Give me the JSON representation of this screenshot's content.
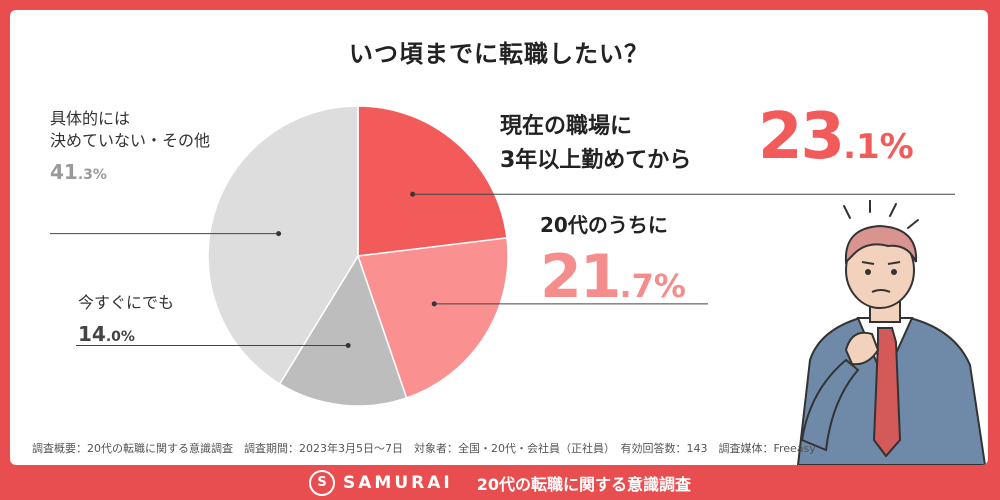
{
  "title": "いつ頃までに転職したい？",
  "chart_data": {
    "type": "pie",
    "categories": [
      "現在の職場に3年以上勤めてから",
      "20代のうちに",
      "今すぐにでも",
      "具体的には決めていない・その他"
    ],
    "values": [
      23.1,
      21.7,
      14.0,
      41.3
    ],
    "colors": [
      "#f35b5b",
      "#fa908f",
      "#bdbdbd",
      "#dddddd"
    ]
  },
  "labels": {
    "s1_line1": "現在の職場に",
    "s1_line2": "3年以上勤めてから",
    "s1_int": "23",
    "s1_dec": ".1%",
    "s2_line1": "20代のうちに",
    "s2_int": "21",
    "s2_dec": ".7%",
    "s3_line1": "今すぐにでも",
    "s3_int": "14",
    "s3_dec": ".0%",
    "s4_line1": "具体的には",
    "s4_line2": "決めていない・その他",
    "s4_int": "41",
    "s4_dec": ".3%"
  },
  "footnote": "調査概要：20代の転職に関する意識調査　調査期間：2023年3月5日〜7日　対象者：全国・20代・会社員（正社員）　有効回答数：143　調査媒体：Freeasy",
  "footer": {
    "brand": "SAMURAI",
    "title": "20代の転職に関する意識調査"
  },
  "colors": {
    "accent": "#e84e50",
    "title_highlight": "#fff2b8",
    "pct_red": "#f35b5b",
    "pct_pink": "#f58d8d",
    "pct_gray": "#9a9a9a",
    "pct_dark": "#444444"
  }
}
